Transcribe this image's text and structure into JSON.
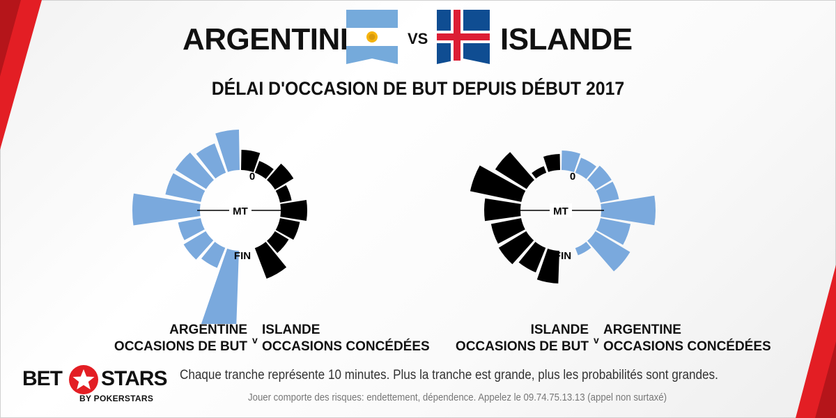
{
  "header": {
    "team_a": "ARGENTINE",
    "vs": "VS",
    "team_b": "ISLANDE",
    "subtitle": "DÉLAI D'OCCASION DE BUT DEPUIS DÉBUT 2017"
  },
  "colors": {
    "blue": "#7aa9dd",
    "black": "#000000",
    "red": "#e31e24"
  },
  "chart_data": [
    {
      "type": "radial-bar",
      "labels": {
        "start": "0",
        "half": "MT",
        "end": "FIN"
      },
      "outer_side": "left",
      "inner_side": "right",
      "series": [
        {
          "name": "ARGENTINE OCCASIONS DE BUT",
          "color": "#7aa9dd",
          "values": [
            58,
            45,
            52,
            52,
            97,
            33,
            37,
            31,
            188
          ]
        },
        {
          "name": "ISLANDE OCCASIONS CONCÉDÉES",
          "color": "#000000",
          "values": [
            29,
            18,
            31,
            17,
            38,
            29,
            23,
            47
          ]
        }
      ]
    },
    {
      "type": "radial-bar",
      "labels": {
        "start": "0",
        "half": "MT",
        "end": "FIN"
      },
      "outer_side": "left",
      "inner_side": "right",
      "series": [
        {
          "name": "ISLANDE OCCASIONS DE BUT",
          "color": "#000000",
          "values": [
            23,
            10,
            53,
            75,
            52,
            44,
            46,
            38,
            47
          ]
        },
        {
          "name": "ARGENTINE OCCASIONS CONCÉDÉES",
          "color": "#7aa9dd",
          "values": [
            28,
            23,
            27,
            27,
            78,
            44,
            58,
            11
          ]
        }
      ]
    }
  ],
  "legend": [
    {
      "left_line1": "ARGENTINE",
      "left_line2": "OCCASIONS DE BUT",
      "v": "v",
      "right_line1": "ISLANDE",
      "right_line2": "OCCASIONS CONCÉDÉES"
    },
    {
      "left_line1": "ISLANDE",
      "left_line2": "OCCASIONS DE BUT",
      "v": "v",
      "right_line1": "ARGENTINE",
      "right_line2": "OCCASIONS CONCÉDÉES"
    }
  ],
  "footnote": "Chaque tranche représente 10 minutes. Plus la tranche est grande, plus les probabilités sont grandes.",
  "disclaimer": "Jouer comporte des risques: endettement, dépendence. Appelez le 09.74.75.13.13 (appel non surtaxé)",
  "logo": {
    "bet": "BET",
    "stars": "STARS",
    "by": "BY POKERSTARS"
  }
}
